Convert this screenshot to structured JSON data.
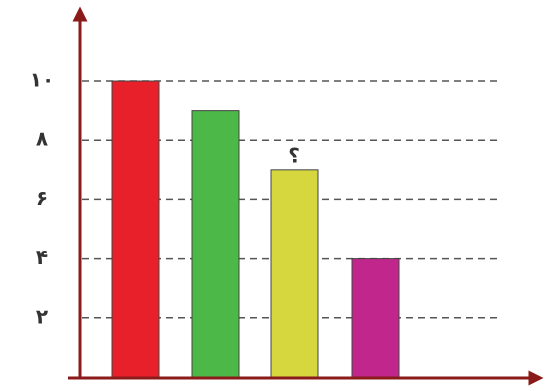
{
  "chart_data": {
    "type": "bar",
    "categories": [
      null,
      null,
      null,
      null
    ],
    "series": [
      {
        "values": [
          10,
          9,
          7,
          4
        ],
        "colors": [
          "#e8202a",
          "#4cb848",
          "#d6d63e",
          "#c0268c"
        ]
      }
    ],
    "annotation": "؟",
    "ylim": [
      0,
      12.4
    ],
    "yticks": [
      {
        "value": 2,
        "label": "۲"
      },
      {
        "value": 4,
        "label": "۴"
      },
      {
        "value": 6,
        "label": "۶"
      },
      {
        "value": 8,
        "label": "۸"
      },
      {
        "value": 10,
        "label": "۱۰"
      }
    ],
    "grid": true
  }
}
